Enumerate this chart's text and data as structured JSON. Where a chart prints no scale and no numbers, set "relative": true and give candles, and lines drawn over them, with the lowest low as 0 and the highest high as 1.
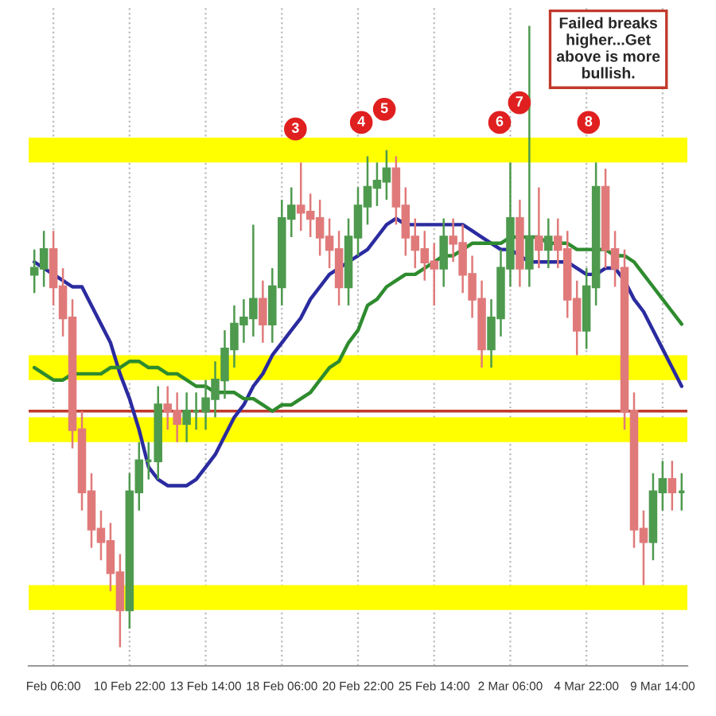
{
  "chart_data": {
    "type": "candlestick",
    "relative": true,
    "categories": [
      null,
      null,
      "Feb 06:00",
      null,
      null,
      null,
      null,
      null,
      null,
      null,
      "10 Feb 22:00",
      null,
      null,
      null,
      null,
      null,
      null,
      null,
      "13 Feb 14:00",
      null,
      null,
      null,
      null,
      null,
      null,
      null,
      "18 Feb 06:00",
      null,
      null,
      null,
      null,
      null,
      null,
      null,
      "20 Feb 22:00",
      null,
      null,
      null,
      null,
      null,
      null,
      null,
      "25 Feb 14:00",
      null,
      null,
      null,
      null,
      null,
      null,
      null,
      "2 Mar 06:00",
      null,
      null,
      null,
      null,
      null,
      null,
      null,
      "4 Mar 22:00",
      null,
      null,
      null,
      null,
      null,
      null,
      null,
      "9 Mar 14:00",
      null,
      null
    ],
    "ohlc": [
      [
        0.6,
        0.64,
        0.57,
        0.61
      ],
      [
        0.61,
        0.67,
        0.58,
        0.64
      ],
      [
        0.64,
        0.67,
        0.55,
        0.58
      ],
      [
        0.58,
        0.61,
        0.5,
        0.53
      ],
      [
        0.53,
        0.56,
        0.32,
        0.35
      ],
      [
        0.35,
        0.38,
        0.22,
        0.25
      ],
      [
        0.25,
        0.28,
        0.16,
        0.19
      ],
      [
        0.19,
        0.22,
        0.14,
        0.17
      ],
      [
        0.17,
        0.2,
        0.09,
        0.12
      ],
      [
        0.12,
        0.15,
        0.0,
        0.06
      ],
      [
        0.06,
        0.28,
        0.03,
        0.25
      ],
      [
        0.25,
        0.33,
        0.22,
        0.3
      ],
      [
        0.3,
        0.33,
        0.27,
        0.3
      ],
      [
        0.3,
        0.42,
        0.27,
        0.39
      ],
      [
        0.39,
        0.42,
        0.35,
        0.38
      ],
      [
        0.38,
        0.41,
        0.33,
        0.36
      ],
      [
        0.36,
        0.41,
        0.33,
        0.38
      ],
      [
        0.38,
        0.41,
        0.35,
        0.38
      ],
      [
        0.38,
        0.43,
        0.35,
        0.4
      ],
      [
        0.4,
        0.46,
        0.37,
        0.43
      ],
      [
        0.43,
        0.51,
        0.4,
        0.48
      ],
      [
        0.48,
        0.55,
        0.45,
        0.52
      ],
      [
        0.52,
        0.56,
        0.49,
        0.53
      ],
      [
        0.53,
        0.68,
        0.5,
        0.56
      ],
      [
        0.56,
        0.59,
        0.49,
        0.52
      ],
      [
        0.52,
        0.61,
        0.49,
        0.58
      ],
      [
        0.58,
        0.72,
        0.55,
        0.69
      ],
      [
        0.69,
        0.74,
        0.66,
        0.71
      ],
      [
        0.71,
        0.78,
        0.67,
        0.7
      ],
      [
        0.7,
        0.73,
        0.66,
        0.69
      ],
      [
        0.69,
        0.72,
        0.63,
        0.66
      ],
      [
        0.66,
        0.69,
        0.61,
        0.64
      ],
      [
        0.64,
        0.67,
        0.55,
        0.58
      ],
      [
        0.58,
        0.69,
        0.55,
        0.66
      ],
      [
        0.66,
        0.74,
        0.63,
        0.71
      ],
      [
        0.71,
        0.79,
        0.68,
        0.74
      ],
      [
        0.74,
        0.78,
        0.71,
        0.75
      ],
      [
        0.75,
        0.8,
        0.72,
        0.77
      ],
      [
        0.77,
        0.79,
        0.68,
        0.71
      ],
      [
        0.71,
        0.74,
        0.63,
        0.66
      ],
      [
        0.66,
        0.69,
        0.61,
        0.64
      ],
      [
        0.64,
        0.67,
        0.59,
        0.62
      ],
      [
        0.62,
        0.65,
        0.55,
        0.61
      ],
      [
        0.61,
        0.69,
        0.58,
        0.66
      ],
      [
        0.66,
        0.69,
        0.62,
        0.65
      ],
      [
        0.65,
        0.68,
        0.57,
        0.6
      ],
      [
        0.6,
        0.63,
        0.53,
        0.56
      ],
      [
        0.56,
        0.59,
        0.45,
        0.48
      ],
      [
        0.48,
        0.56,
        0.45,
        0.53
      ],
      [
        0.53,
        0.64,
        0.5,
        0.61
      ],
      [
        0.61,
        0.78,
        0.58,
        0.69
      ],
      [
        0.69,
        0.72,
        0.58,
        0.61
      ],
      [
        0.61,
        1.0,
        0.58,
        0.66
      ],
      [
        0.66,
        0.74,
        0.61,
        0.64
      ],
      [
        0.64,
        0.69,
        0.61,
        0.66
      ],
      [
        0.66,
        0.69,
        0.61,
        0.64
      ],
      [
        0.64,
        0.67,
        0.53,
        0.56
      ],
      [
        0.56,
        0.59,
        0.47,
        0.51
      ],
      [
        0.51,
        0.61,
        0.48,
        0.58
      ],
      [
        0.58,
        0.78,
        0.55,
        0.74
      ],
      [
        0.74,
        0.77,
        0.61,
        0.64
      ],
      [
        0.64,
        0.67,
        0.58,
        0.61
      ],
      [
        0.61,
        0.64,
        0.35,
        0.38
      ],
      [
        0.38,
        0.41,
        0.16,
        0.19
      ],
      [
        0.19,
        0.22,
        0.1,
        0.17
      ],
      [
        0.17,
        0.28,
        0.14,
        0.25
      ],
      [
        0.25,
        0.3,
        0.22,
        0.27
      ],
      [
        0.27,
        0.3,
        0.22,
        0.25
      ],
      [
        0.25,
        0.28,
        0.22,
        0.25
      ]
    ],
    "colors": [
      "#4e9a4e",
      "#4e9a4e",
      "#e07a7a",
      "#e07a7a",
      "#e07a7a",
      "#e07a7a",
      "#e07a7a",
      "#e07a7a",
      "#e07a7a",
      "#e07a7a",
      "#4e9a4e",
      "#4e9a4e",
      "#4e9a4e",
      "#4e9a4e",
      "#e07a7a",
      "#e07a7a",
      "#4e9a4e",
      "#4e9a4e",
      "#4e9a4e",
      "#4e9a4e",
      "#4e9a4e",
      "#4e9a4e",
      "#4e9a4e",
      "#4e9a4e",
      "#e07a7a",
      "#4e9a4e",
      "#4e9a4e",
      "#4e9a4e",
      "#e07a7a",
      "#e07a7a",
      "#e07a7a",
      "#e07a7a",
      "#e07a7a",
      "#4e9a4e",
      "#4e9a4e",
      "#4e9a4e",
      "#4e9a4e",
      "#4e9a4e",
      "#e07a7a",
      "#e07a7a",
      "#e07a7a",
      "#e07a7a",
      "#e07a7a",
      "#4e9a4e",
      "#e07a7a",
      "#e07a7a",
      "#e07a7a",
      "#e07a7a",
      "#4e9a4e",
      "#4e9a4e",
      "#4e9a4e",
      "#e07a7a",
      "#4e9a4e",
      "#e07a7a",
      "#4e9a4e",
      "#e07a7a",
      "#e07a7a",
      "#e07a7a",
      "#4e9a4e",
      "#4e9a4e",
      "#e07a7a",
      "#e07a7a",
      "#e07a7a",
      "#e07a7a",
      "#e07a7a",
      "#4e9a4e",
      "#4e9a4e",
      "#e07a7a",
      "#4e9a4e"
    ],
    "series": [
      {
        "type": "line",
        "color": "#2b2ba0",
        "values": [
          0.62,
          0.61,
          0.6,
          0.59,
          0.58,
          0.58,
          0.55,
          0.52,
          0.49,
          0.44,
          0.4,
          0.35,
          0.29,
          0.27,
          0.26,
          0.26,
          0.26,
          0.27,
          0.29,
          0.31,
          0.34,
          0.37,
          0.39,
          0.42,
          0.44,
          0.47,
          0.49,
          0.51,
          0.53,
          0.56,
          0.58,
          0.6,
          0.61,
          0.62,
          0.63,
          0.64,
          0.66,
          0.68,
          0.69,
          0.68,
          0.68,
          0.68,
          0.68,
          0.68,
          0.68,
          0.68,
          0.67,
          0.66,
          0.65,
          0.64,
          0.64,
          0.63,
          0.62,
          0.62,
          0.62,
          0.62,
          0.62,
          0.61,
          0.6,
          0.6,
          0.61,
          0.61,
          0.59,
          0.56,
          0.54,
          0.51,
          0.48,
          0.45,
          0.42
        ]
      },
      {
        "type": "line",
        "color": "#2e8b2e",
        "values": [
          0.45,
          0.44,
          0.43,
          0.43,
          0.44,
          0.44,
          0.44,
          0.44,
          0.45,
          0.45,
          0.46,
          0.46,
          0.45,
          0.45,
          0.44,
          0.44,
          0.43,
          0.42,
          0.42,
          0.41,
          0.41,
          0.41,
          0.4,
          0.4,
          0.39,
          0.38,
          0.39,
          0.39,
          0.4,
          0.41,
          0.43,
          0.45,
          0.46,
          0.49,
          0.51,
          0.55,
          0.56,
          0.58,
          0.59,
          0.6,
          0.6,
          0.61,
          0.62,
          0.63,
          0.63,
          0.64,
          0.65,
          0.65,
          0.65,
          0.65,
          0.66,
          0.66,
          0.66,
          0.66,
          0.65,
          0.65,
          0.65,
          0.64,
          0.64,
          0.64,
          0.64,
          0.63,
          0.63,
          0.62,
          0.6,
          0.58,
          0.56,
          0.54,
          0.52
        ]
      }
    ],
    "bands": [
      {
        "axis": "y",
        "from": 0.78,
        "to": 0.82,
        "color": "#ffff00"
      },
      {
        "axis": "y",
        "from": 0.43,
        "to": 0.47,
        "color": "#ffff00"
      },
      {
        "axis": "y",
        "from": 0.33,
        "to": 0.37,
        "color": "#ffff00"
      },
      {
        "axis": "y",
        "from": 0.06,
        "to": 0.1,
        "color": "#ffff00"
      }
    ],
    "ref_lines": [
      {
        "axis": "y",
        "value": 0.38,
        "color": "#c0392b",
        "line_style": "solid"
      }
    ],
    "annotations": [
      "3",
      "4",
      "5",
      "6",
      "7",
      "8",
      "Failed breaks\nhigher...Get\nabove is more\nbullish."
    ],
    "grid": "x"
  }
}
